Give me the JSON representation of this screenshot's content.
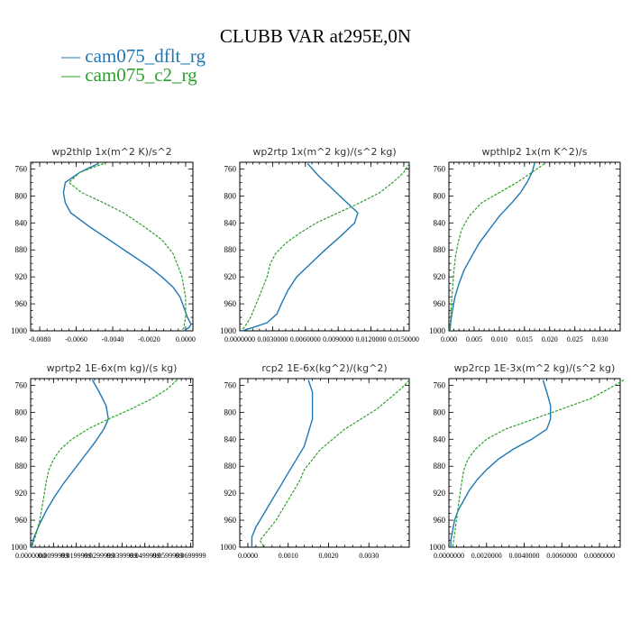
{
  "title": "CLUBB VAR at295E,0N",
  "legend": [
    {
      "name": "cam075_dflt_rg",
      "color": "#1f77b4"
    },
    {
      "name": "cam075_c2_rg",
      "color": "#2ca02c"
    }
  ],
  "chart_data": [
    {
      "type": "line",
      "title": "wp2thlp  1x(m^2 K)/s^2",
      "xlim": [
        -0.0085,
        0.0004
      ],
      "ylim": [
        1000,
        750
      ],
      "xticks": [
        -0.008,
        -0.006,
        -0.004,
        -0.002,
        0.0
      ],
      "xticklabels": [
        "-0.0080",
        "-0.0060",
        "-0.0040",
        "-0.0020",
        "0.0000"
      ],
      "yticks": [
        760,
        800,
        840,
        880,
        920,
        960,
        1000
      ],
      "series": [
        {
          "name": "cam075_dflt_rg",
          "y": [
            752,
            765,
            780,
            795,
            810,
            825,
            845,
            865,
            885,
            905,
            920,
            935,
            950,
            965,
            980,
            990,
            995,
            1000
          ],
          "values": [
            -0.0048,
            -0.0058,
            -0.0066,
            -0.0067,
            -0.0066,
            -0.0063,
            -0.0053,
            -0.0042,
            -0.0031,
            -0.002,
            -0.0013,
            -0.0007,
            -0.0003,
            -0.0001,
            0.0001,
            0.0003,
            0.0002,
            -0.0001
          ]
        },
        {
          "name": "cam075_c2_rg",
          "y": [
            752,
            765,
            780,
            795,
            810,
            825,
            845,
            865,
            885,
            905,
            920,
            935,
            950,
            965,
            980,
            995,
            1000
          ],
          "values": [
            -0.0045,
            -0.0058,
            -0.0064,
            -0.0057,
            -0.0045,
            -0.0034,
            -0.0023,
            -0.0013,
            -0.0007,
            -0.0004,
            -0.0002,
            -0.0001,
            0.0,
            0.0,
            0.0,
            -0.0001,
            -0.0002
          ]
        }
      ]
    },
    {
      "type": "line",
      "title": "wp2rtp  1x(m^2 kg)/(s^2 kg)",
      "xlim": [
        0.0,
        0.0155
      ],
      "ylim": [
        1000,
        750
      ],
      "xticks": [
        0.0,
        0.003,
        0.006,
        0.009,
        0.012,
        0.015
      ],
      "xticklabels": [
        "0.0000000",
        "0.0030000",
        "0.0060000",
        "0.0090000",
        "0.0120000",
        "0.0150000"
      ],
      "yticks": [
        760,
        800,
        840,
        880,
        920,
        960,
        1000
      ],
      "series": [
        {
          "name": "cam075_dflt_rg",
          "y": [
            752,
            770,
            790,
            810,
            825,
            840,
            860,
            880,
            900,
            920,
            940,
            960,
            975,
            988,
            995,
            1000
          ],
          "values": [
            0.0062,
            0.0072,
            0.0085,
            0.0098,
            0.0108,
            0.0105,
            0.0092,
            0.0078,
            0.0065,
            0.0052,
            0.0044,
            0.0038,
            0.0034,
            0.0025,
            0.0012,
            0.0002
          ]
        },
        {
          "name": "cam075_c2_rg",
          "y": [
            752,
            765,
            780,
            795,
            810,
            825,
            840,
            855,
            870,
            885,
            900,
            920,
            940,
            960,
            980,
            995,
            1000
          ],
          "values": [
            0.0155,
            0.015,
            0.014,
            0.0128,
            0.011,
            0.009,
            0.007,
            0.0055,
            0.0042,
            0.0033,
            0.0028,
            0.0025,
            0.002,
            0.0015,
            0.001,
            0.0004,
            0.0001
          ]
        }
      ]
    },
    {
      "type": "line",
      "title": "wpthlp2  1x(m K^2)/s",
      "xlim": [
        0.0,
        0.034
      ],
      "ylim": [
        1000,
        750
      ],
      "xticks": [
        0.0,
        0.005,
        0.01,
        0.015,
        0.02,
        0.025,
        0.03
      ],
      "xticklabels": [
        "0.000",
        "0.005",
        "0.010",
        "0.015",
        "0.020",
        "0.025",
        "0.030"
      ],
      "yticks": [
        760,
        800,
        840,
        880,
        920,
        960,
        1000
      ],
      "series": [
        {
          "name": "cam075_dflt_rg",
          "y": [
            752,
            765,
            780,
            795,
            810,
            830,
            850,
            870,
            890,
            910,
            930,
            950,
            970,
            985,
            1000
          ],
          "values": [
            0.017,
            0.0165,
            0.0155,
            0.0142,
            0.0125,
            0.01,
            0.008,
            0.006,
            0.0045,
            0.003,
            0.002,
            0.0012,
            0.0007,
            0.0004,
            0.0002
          ]
        },
        {
          "name": "cam075_c2_rg",
          "y": [
            752,
            765,
            780,
            795,
            810,
            830,
            850,
            870,
            890,
            910,
            930,
            950,
            970,
            985,
            1000
          ],
          "values": [
            0.019,
            0.0165,
            0.0135,
            0.01,
            0.0065,
            0.004,
            0.0025,
            0.0018,
            0.0013,
            0.001,
            0.0008,
            0.0006,
            0.0004,
            0.0003,
            0.0001
          ]
        }
      ]
    },
    {
      "type": "line",
      "title": "wprtp2  1E-6x(m kg)/(s kg)",
      "xlim": [
        0.0,
        0.071
      ],
      "ylim": [
        1000,
        750
      ],
      "xticks": [
        0.0,
        0.00999,
        0.01999,
        0.02999,
        0.03999,
        0.04999,
        0.05999,
        0.06999
      ],
      "xticklabels": [
        "0.0000000",
        "0.0099999",
        "0.0199999",
        "0.0299999",
        "0.0399999",
        "0.0499999",
        "0.0599999",
        "0.0699999"
      ],
      "yticks": [
        760,
        800,
        840,
        880,
        920,
        960,
        1000
      ],
      "series": [
        {
          "name": "cam075_dflt_rg",
          "y": [
            752,
            770,
            790,
            810,
            825,
            845,
            865,
            885,
            905,
            925,
            945,
            965,
            985,
            1000
          ],
          "values": [
            0.027,
            0.03,
            0.033,
            0.034,
            0.032,
            0.028,
            0.0235,
            0.019,
            0.0145,
            0.0105,
            0.007,
            0.004,
            0.0015,
            0.0002
          ]
        },
        {
          "name": "cam075_c2_rg",
          "y": [
            752,
            765,
            780,
            795,
            810,
            825,
            840,
            855,
            870,
            885,
            900,
            920,
            940,
            960,
            980,
            1000
          ],
          "values": [
            0.064,
            0.06,
            0.053,
            0.044,
            0.034,
            0.025,
            0.018,
            0.013,
            0.01,
            0.008,
            0.007,
            0.006,
            0.005,
            0.004,
            0.0025,
            0.0005
          ]
        }
      ]
    },
    {
      "type": "line",
      "title": "rcp2  1E-6x(kg^2)/(kg^2)",
      "xlim": [
        -0.0002,
        0.004
      ],
      "ylim": [
        1000,
        750
      ],
      "xticks": [
        0.0,
        0.001,
        0.002,
        0.003
      ],
      "xticklabels": [
        "0.0000",
        "0.0010",
        "0.0020",
        "0.0030"
      ],
      "yticks": [
        760,
        800,
        840,
        880,
        920,
        960,
        1000
      ],
      "series": [
        {
          "name": "cam075_dflt_rg",
          "y": [
            752,
            770,
            790,
            810,
            830,
            850,
            870,
            890,
            910,
            930,
            950,
            970,
            985,
            1000
          ],
          "values": [
            0.0015,
            0.0016,
            0.0016,
            0.0016,
            0.0015,
            0.0014,
            0.0012,
            0.001,
            0.0008,
            0.0006,
            0.0004,
            0.0002,
            0.0001,
            0.0001
          ]
        },
        {
          "name": "cam075_c2_rg",
          "y": [
            752,
            765,
            780,
            795,
            810,
            825,
            840,
            855,
            870,
            885,
            900,
            920,
            940,
            960,
            975,
            990,
            1000
          ],
          "values": [
            0.004,
            0.0038,
            0.0035,
            0.0032,
            0.0028,
            0.0024,
            0.0021,
            0.0018,
            0.0016,
            0.0014,
            0.0013,
            0.0011,
            0.0009,
            0.0007,
            0.0005,
            0.0003,
            0.0004
          ]
        }
      ]
    },
    {
      "type": "line",
      "title": "wp2rcp  1E-3x(m^2 kg)/(s^2 kg)",
      "xlim": [
        0.0,
        0.0091
      ],
      "ylim": [
        1000,
        750
      ],
      "xticks": [
        0.0,
        0.002,
        0.004,
        0.006,
        0.008
      ],
      "xticklabels": [
        "0.0000000",
        "0.0020000",
        "0.0040000",
        "0.0060000",
        "0.0080000"
      ],
      "yticks": [
        760,
        800,
        840,
        880,
        920,
        960,
        1000
      ],
      "series": [
        {
          "name": "cam075_dflt_rg",
          "y": [
            752,
            770,
            790,
            810,
            825,
            840,
            855,
            870,
            885,
            900,
            915,
            930,
            945,
            960,
            975,
            990,
            1000
          ],
          "values": [
            0.005,
            0.0052,
            0.0054,
            0.0054,
            0.0052,
            0.0044,
            0.0034,
            0.0026,
            0.002,
            0.0015,
            0.0011,
            0.0008,
            0.0005,
            0.0003,
            0.0002,
            0.0001,
            0.0001
          ]
        },
        {
          "name": "cam075_c2_rg",
          "y": [
            752,
            765,
            780,
            795,
            810,
            825,
            840,
            855,
            870,
            885,
            900,
            920,
            940,
            960,
            980,
            1000
          ],
          "values": [
            0.0093,
            0.0085,
            0.0075,
            0.006,
            0.0045,
            0.003,
            0.002,
            0.0014,
            0.001,
            0.0008,
            0.0007,
            0.0006,
            0.0005,
            0.0004,
            0.0003,
            0.0002
          ]
        }
      ]
    }
  ]
}
